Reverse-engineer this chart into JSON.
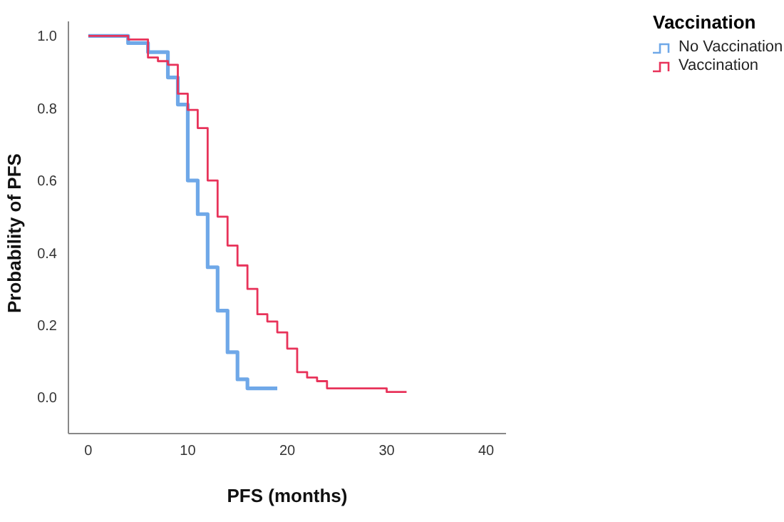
{
  "chart_data": {
    "type": "step",
    "xlabel": "PFS (months)",
    "ylabel": "Probability of PFS",
    "legend_title": "Vaccination",
    "legend": "top right",
    "grid": false,
    "marker": "none",
    "line_style": "solid",
    "xlim": [
      -2,
      42
    ],
    "xticks": [
      0,
      10,
      20,
      30,
      40
    ],
    "ylim": [
      -0.1,
      1.04
    ],
    "yticks": [
      {
        "value": 0,
        "label": "0.0"
      },
      {
        "value": 0.2,
        "label": "0.2"
      },
      {
        "value": 0.4,
        "label": "0.4"
      },
      {
        "value": 0.6,
        "label": "0.6"
      },
      {
        "value": 0.8,
        "label": "0.8"
      },
      {
        "value": 1,
        "label": "1.0"
      }
    ],
    "series": [
      {
        "name": "No Vaccination",
        "color": "#6fa8e8",
        "x": [
          0,
          4,
          6,
          8,
          9,
          10,
          11,
          12,
          13,
          14,
          15,
          16,
          19
        ],
        "values": [
          1,
          0.98,
          0.955,
          0.885,
          0.81,
          0.6,
          0.507,
          0.36,
          0.24,
          0.125,
          0.05,
          0.025,
          0.025
        ]
      },
      {
        "name": "Vaccination",
        "color": "#e8335a",
        "x": [
          0,
          4,
          6,
          7,
          8,
          9,
          10,
          11,
          12,
          13,
          14,
          15,
          16,
          17,
          18,
          19,
          20,
          21,
          22,
          23,
          24,
          30,
          32
        ],
        "values": [
          1,
          0.99,
          0.94,
          0.93,
          0.92,
          0.84,
          0.795,
          0.745,
          0.6,
          0.5,
          0.42,
          0.365,
          0.3,
          0.23,
          0.21,
          0.18,
          0.135,
          0.07,
          0.055,
          0.045,
          0.025,
          0.015,
          0.015
        ]
      }
    ]
  }
}
